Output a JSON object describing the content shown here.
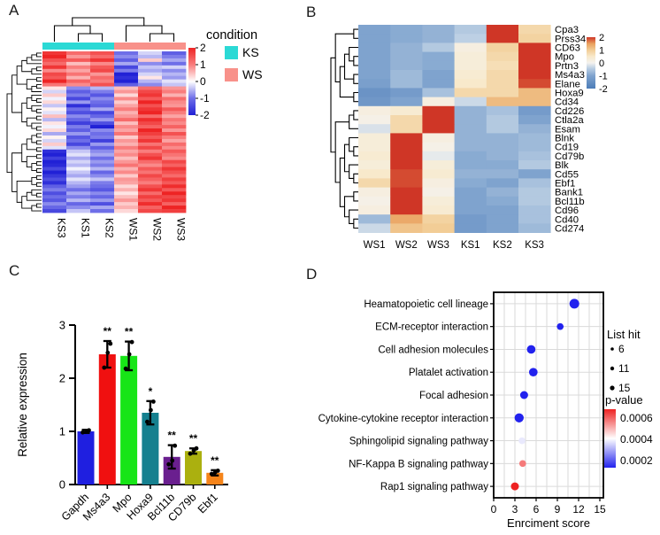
{
  "figure": {
    "background": "#ffffff"
  },
  "panels": {
    "a": {
      "label": "A"
    },
    "b": {
      "label": "B"
    },
    "c": {
      "label": "C"
    },
    "d": {
      "label": "D"
    }
  },
  "chart_data": [
    {
      "id": "A",
      "type": "heatmap",
      "columns": [
        "KS3",
        "KS1",
        "KS2",
        "WS1",
        "WS2",
        "WS3"
      ],
      "col_tree": [
        [
          0,
          [
            1,
            2
          ]
        ],
        [
          3,
          [
            4,
            5
          ]
        ]
      ],
      "legend": {
        "title": "condition",
        "classes": [
          {
            "label": "KS",
            "color": "#2BD9D5"
          },
          {
            "label": "WS",
            "color": "#F8918A"
          }
        ]
      },
      "colorbar_ticks": [
        2,
        1,
        0,
        -1,
        -2
      ],
      "colormap_stops": [
        [
          -2,
          "#2121D6"
        ],
        [
          -1,
          "#6E6EE8"
        ],
        [
          0,
          "#FFFFFF"
        ],
        [
          1,
          "#F97D7D"
        ],
        [
          2,
          "#EE2424"
        ]
      ],
      "rows": [
        [
          1.8,
          1.2,
          1.5,
          -1.0,
          -0.3,
          -1.2
        ],
        [
          2.0,
          0.8,
          1.2,
          -0.8,
          -0.5,
          -0.9
        ],
        [
          1.5,
          1.4,
          1.8,
          -1.2,
          0.4,
          -0.6
        ],
        [
          1.2,
          0.5,
          0.9,
          -0.6,
          -0.8,
          -1.0
        ],
        [
          1.8,
          1.0,
          1.4,
          -1.5,
          -0.4,
          -0.3
        ],
        [
          0.9,
          0.7,
          1.6,
          -0.9,
          -0.6,
          -0.8
        ],
        [
          1.6,
          1.1,
          0.8,
          -2.0,
          -0.3,
          -0.5
        ],
        [
          1.4,
          0.6,
          1.2,
          -1.8,
          0.2,
          -0.7
        ],
        [
          2.0,
          1.3,
          1.0,
          -2.0,
          -0.5,
          -0.2
        ],
        [
          1.1,
          0.9,
          1.5,
          -1.2,
          -0.8,
          -0.4
        ],
        [
          0.2,
          -0.8,
          -0.5,
          0.5,
          1.2,
          0.8
        ],
        [
          -0.3,
          -1.2,
          -0.9,
          0.8,
          1.6,
          1.0
        ],
        [
          0.4,
          -0.9,
          -1.3,
          0.3,
          1.8,
          0.6
        ],
        [
          -0.1,
          -1.5,
          -0.8,
          0.9,
          1.4,
          1.2
        ],
        [
          0.3,
          -0.7,
          -1.0,
          0.4,
          2.0,
          0.9
        ],
        [
          -0.4,
          -1.8,
          -1.2,
          0.7,
          1.5,
          0.8
        ],
        [
          0.1,
          -1.0,
          -0.6,
          1.0,
          1.8,
          1.4
        ],
        [
          -0.2,
          -1.4,
          -1.5,
          0.6,
          2.0,
          1.0
        ],
        [
          0.5,
          -0.8,
          -1.1,
          0.8,
          1.2,
          0.7
        ],
        [
          -0.5,
          -1.1,
          -0.7,
          1.2,
          1.9,
          1.1
        ],
        [
          0.2,
          -1.6,
          -1.4,
          0.5,
          1.6,
          0.9
        ],
        [
          -0.1,
          -0.9,
          -2.0,
          0.9,
          1.3,
          1.3
        ],
        [
          0.3,
          -1.2,
          -0.8,
          0.7,
          2.0,
          0.8
        ],
        [
          -0.6,
          -0.7,
          -1.0,
          1.1,
          1.7,
          1.5
        ],
        [
          0.1,
          -1.3,
          -0.9,
          0.4,
          1.4,
          1.0
        ],
        [
          -0.3,
          -1.0,
          -1.6,
          0.8,
          1.8,
          0.7
        ],
        [
          0.4,
          -1.5,
          -0.7,
          0.6,
          1.1,
          1.2
        ],
        [
          -0.2,
          -0.8,
          -1.2,
          1.0,
          1.6,
          0.9
        ],
        [
          -1.8,
          -0.4,
          -0.8,
          0.7,
          1.0,
          1.4
        ],
        [
          -2.0,
          -0.2,
          -0.6,
          0.9,
          1.5,
          1.1
        ],
        [
          -1.6,
          -0.6,
          -1.0,
          0.5,
          1.8,
          0.9
        ],
        [
          -2.0,
          -0.3,
          -0.7,
          0.8,
          1.2,
          1.6
        ],
        [
          -1.9,
          -0.5,
          -0.9,
          1.1,
          0.9,
          1.3
        ],
        [
          -1.5,
          -0.1,
          -0.5,
          0.6,
          1.4,
          1.8
        ],
        [
          -2.0,
          -0.4,
          -1.1,
          0.9,
          1.1,
          1.5
        ],
        [
          -1.7,
          -0.6,
          -0.8,
          0.4,
          1.6,
          1.2
        ],
        [
          -1.4,
          -0.2,
          -0.4,
          0.8,
          1.3,
          1.7
        ],
        [
          -1.8,
          -0.5,
          -0.9,
          0.7,
          1.0,
          1.4
        ],
        [
          -1.2,
          -0.7,
          -1.0,
          0.3,
          1.5,
          1.9
        ],
        [
          -0.9,
          -1.0,
          -1.3,
          0.6,
          1.8,
          1.4
        ],
        [
          -1.4,
          -0.6,
          -0.8,
          0.2,
          1.2,
          2.0
        ],
        [
          -1.0,
          -0.9,
          -1.1,
          0.5,
          1.7,
          1.6
        ],
        [
          -1.3,
          -0.5,
          -0.7,
          0.8,
          1.4,
          1.8
        ],
        [
          -0.8,
          -1.1,
          -1.4,
          0.4,
          1.9,
          1.3
        ],
        [
          -1.1,
          -0.8,
          -0.6,
          0.6,
          1.3,
          2.0
        ],
        [
          -1.5,
          -0.4,
          -1.0,
          0.3,
          1.6,
          1.7
        ]
      ]
    },
    {
      "id": "B",
      "type": "heatmap",
      "columns": [
        "WS1",
        "WS2",
        "WS3",
        "KS1",
        "KS2",
        "KS3"
      ],
      "genes": [
        "Cpa3",
        "Prss34",
        "CD63",
        "Mpo",
        "Prtn3",
        "Ms4a3",
        "Elane",
        "Hoxa9",
        "Cd34",
        "Cd226",
        "Ctla2a",
        "Esam",
        "Blnk",
        "Cd19",
        "Cd79b",
        "Blk",
        "Cd55",
        "Ebf1",
        "Bank1",
        "Bcl11b",
        "Cd96",
        "Cd40",
        "Cd274"
      ],
      "values": [
        [
          -1.0,
          -0.9,
          -0.8,
          -0.5,
          2.0,
          0.8
        ],
        [
          -1.0,
          -0.9,
          -0.8,
          -0.4,
          2.0,
          0.9
        ],
        [
          -1.0,
          -0.8,
          -0.5,
          0.2,
          0.9,
          2.0
        ],
        [
          -1.0,
          -0.8,
          -0.9,
          0.3,
          0.8,
          2.0
        ],
        [
          -1.0,
          -0.8,
          -0.9,
          0.3,
          0.7,
          2.0
        ],
        [
          -1.0,
          -0.7,
          -1.0,
          0.4,
          0.8,
          2.0
        ],
        [
          -1.1,
          -0.7,
          -1.0,
          0.5,
          0.8,
          1.9
        ],
        [
          -1.4,
          -1.2,
          -0.6,
          0.8,
          0.8,
          1.2
        ],
        [
          -1.3,
          -1.0,
          0.2,
          -0.3,
          1.2,
          1.2
        ],
        [
          0.2,
          0.4,
          2.0,
          -0.8,
          -0.6,
          -1.2
        ],
        [
          0.1,
          0.8,
          2.0,
          -0.8,
          -0.5,
          -1.0
        ],
        [
          -0.2,
          0.8,
          2.0,
          -0.8,
          -0.5,
          -0.8
        ],
        [
          0.3,
          2.0,
          0.2,
          -0.8,
          -0.8,
          -0.7
        ],
        [
          0.3,
          2.0,
          0.1,
          -0.8,
          -0.8,
          -0.7
        ],
        [
          0.4,
          2.0,
          -0.1,
          -0.9,
          -0.8,
          -0.6
        ],
        [
          0.3,
          2.0,
          0.3,
          -0.9,
          -0.9,
          -0.5
        ],
        [
          0.5,
          1.9,
          0.4,
          -0.8,
          -0.8,
          -1.0
        ],
        [
          0.8,
          1.9,
          0.2,
          -0.9,
          -1.0,
          -0.6
        ],
        [
          0.2,
          2.0,
          0.1,
          -1.0,
          -0.8,
          -0.5
        ],
        [
          0.1,
          2.0,
          0.3,
          -1.0,
          -0.9,
          -0.5
        ],
        [
          0.2,
          2.0,
          0.4,
          -1.0,
          -1.0,
          -0.6
        ],
        [
          -0.7,
          1.4,
          0.9,
          -1.2,
          -1.0,
          -0.6
        ],
        [
          -0.3,
          1.1,
          1.0,
          -1.2,
          -1.0,
          -0.7
        ]
      ],
      "row_tree": [
        [
          [
            0,
            1
          ],
          [
            [
              [
                2,
                [
                  3,
                  4
                ]
              ],
              [
                5,
                6
              ]
            ],
            [
              7,
              8
            ]
          ]
        ],
        [
          [
            [
              9,
              10
            ],
            11
          ],
          [
            [
              [
                12,
                [
                  13,
                  14
                ]
              ],
              [
                15,
                [
                  16,
                  17
                ]
              ]
            ],
            [
              [
                18,
                19
              ],
              [
                20,
                [
                  21,
                  22
                ]
              ]
            ]
          ]
        ]
      ],
      "colorbar_ticks": [
        2,
        1,
        0,
        -1,
        -2
      ],
      "colormap_stops": [
        [
          -2,
          "#4C7CB8"
        ],
        [
          -1,
          "#7FA3CE"
        ],
        [
          -0.4,
          "#BDD0E4"
        ],
        [
          0,
          "#F4F2EE"
        ],
        [
          0.5,
          "#F8E9CB"
        ],
        [
          1,
          "#F2CD96"
        ],
        [
          1.5,
          "#E9A05E"
        ],
        [
          2,
          "#CF3626"
        ]
      ]
    },
    {
      "id": "C",
      "type": "bar",
      "categories": [
        "Gapdh",
        "Ms4a3",
        "Mpo",
        "Hoxa9",
        "Bcl11b",
        "CD79b",
        "Ebf1"
      ],
      "values": [
        1.0,
        2.45,
        2.42,
        1.35,
        0.52,
        0.63,
        0.22
      ],
      "errors": [
        0.03,
        0.25,
        0.27,
        0.22,
        0.22,
        0.05,
        0.05
      ],
      "significance": [
        "",
        "**",
        "**",
        "*",
        "**",
        "**",
        "**"
      ],
      "points": [
        [
          0.98,
          1.0,
          1.02
        ],
        [
          2.2,
          2.48,
          2.65
        ],
        [
          2.18,
          2.45,
          2.68
        ],
        [
          1.18,
          1.4,
          1.56
        ],
        [
          0.38,
          0.45,
          0.73
        ],
        [
          0.58,
          0.64,
          0.68
        ],
        [
          0.2,
          0.23,
          0.26
        ]
      ],
      "bar_colors": [
        "#1F1FE0",
        "#F01010",
        "#17E517",
        "#15808F",
        "#6A1F8F",
        "#ABB00F",
        "#F5841A"
      ],
      "ylabel": "Relative expression",
      "yticks": [
        0,
        1,
        2,
        3
      ],
      "ylim": [
        0,
        3
      ]
    },
    {
      "id": "D",
      "type": "scatter",
      "categories": [
        "Heamatopoietic cell lineage",
        "ECM-receptor interaction",
        "Cell adhesion molecules",
        "Platalet activation",
        "Focal adhesion",
        "Cytokine-cytokine receptor interaction",
        "Sphingolipid signaling pathway",
        "NF-Kappa B signaling pathway",
        "Rap1 signaling pathway"
      ],
      "scores": [
        11.4,
        9.4,
        5.3,
        5.6,
        4.3,
        3.6,
        4.0,
        4.1,
        3.0
      ],
      "list_hit": [
        13,
        8,
        11,
        11,
        10,
        12,
        8,
        8,
        10
      ],
      "p_value": [
        0.0001,
        0.0001,
        0.00012,
        0.00012,
        0.00012,
        0.0001,
        0.00038,
        0.00052,
        0.0006
      ],
      "xlabel": "Enrciment score",
      "xticks": [
        0,
        3,
        6,
        9,
        12,
        15
      ],
      "xlim": [
        0,
        15
      ],
      "size_legend": {
        "title": "List hit",
        "entries": [
          6,
          11,
          15
        ]
      },
      "color_legend": {
        "title": "p-value",
        "ticks": [
          "0.0006",
          "0.0004",
          "0.0002"
        ],
        "stops": [
          [
            0.0002,
            "#2222EE"
          ],
          [
            0.0004,
            "#FFFFFF"
          ],
          [
            0.0006,
            "#EE2222"
          ]
        ]
      }
    }
  ]
}
